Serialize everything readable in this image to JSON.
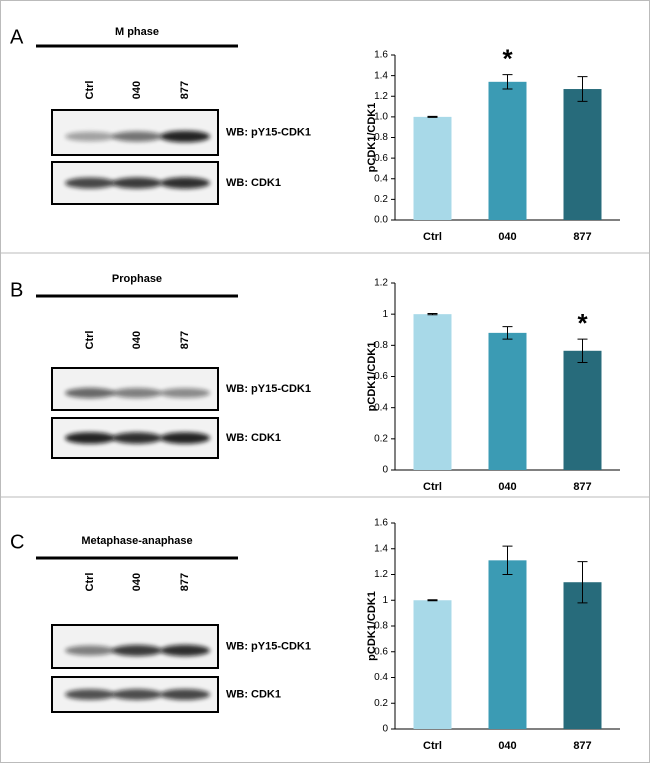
{
  "panels": [
    {
      "letter": "A",
      "title": "M phase",
      "lanes": [
        "Ctrl",
        "040",
        "877"
      ],
      "blots": [
        "WB: pY15-CDK1",
        "WB: CDK1"
      ]
    },
    {
      "letter": "B",
      "title": "Prophase",
      "lanes": [
        "Ctrl",
        "040",
        "877"
      ],
      "blots": [
        "WB: pY15-CDK1",
        "WB: CDK1"
      ]
    },
    {
      "letter": "C",
      "title": "Metaphase-anaphase",
      "lanes": [
        "Ctrl",
        "040",
        "877"
      ],
      "blots": [
        "WB: pY15-CDK1",
        "WB: CDK1"
      ]
    }
  ],
  "chart_data": [
    {
      "type": "bar",
      "y_label": "pCDK1/CDK1",
      "categories": [
        "Ctrl",
        "040",
        "877"
      ],
      "values": [
        1.0,
        1.34,
        1.27
      ],
      "errors": [
        0.005,
        0.07,
        0.12
      ],
      "colors": [
        "#a8d9e8",
        "#3b9bb4",
        "#276b7b"
      ],
      "ylim": [
        0,
        1.6
      ],
      "yticks": [
        {
          "value": 0,
          "label": "0.0"
        },
        0.2,
        0.4,
        0.6,
        0.8,
        {
          "value": 1,
          "label": "1.0"
        },
        1.2,
        1.4,
        1.6
      ],
      "annotation": "*",
      "annotation_index": 1
    },
    {
      "type": "bar",
      "y_label": "pCDK1/CDK1",
      "categories": [
        "Ctrl",
        "040",
        "877"
      ],
      "values": [
        1.0,
        0.88,
        0.765
      ],
      "errors": [
        0.004,
        0.04,
        0.075
      ],
      "colors": [
        "#a8d9e8",
        "#3b9bb4",
        "#276b7b"
      ],
      "ylim": [
        0,
        1.2
      ],
      "yticks": [
        0,
        0.2,
        0.4,
        0.6,
        0.8,
        1,
        1.2
      ],
      "annotation": "*",
      "annotation_index": 2
    },
    {
      "type": "bar",
      "y_label": "pCDK1/CDK1",
      "categories": [
        "Ctrl",
        "040",
        "877"
      ],
      "values": [
        1.0,
        1.31,
        1.14
      ],
      "errors": [
        0.004,
        0.11,
        0.16
      ],
      "colors": [
        "#a8d9e8",
        "#3b9bb4",
        "#276b7b"
      ],
      "ylim": [
        0,
        1.6
      ],
      "yticks": [
        0,
        0.2,
        0.4,
        0.6,
        0.8,
        1,
        1.2,
        1.4,
        1.6
      ]
    }
  ]
}
